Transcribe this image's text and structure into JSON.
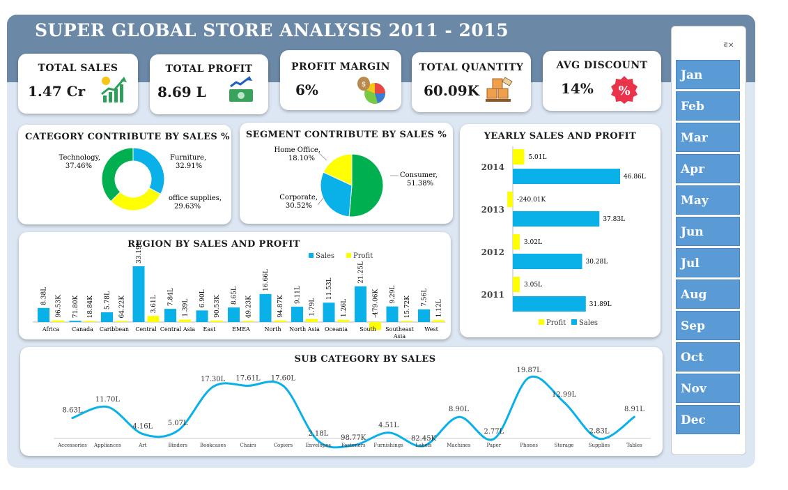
{
  "title": "SUPER GLOBAL STORE ANALYSIS 2011 - 2015",
  "kpis": [
    {
      "title": "TOTAL SALES",
      "value": "1.47 Cr",
      "icon": "sales-growth-icon"
    },
    {
      "title": "TOTAL PROFIT",
      "value": "8.69 L",
      "icon": "money-profit-icon"
    },
    {
      "title": "PROFIT MARGIN",
      "value": "6%",
      "icon": "profit-pie-icon"
    },
    {
      "title": "TOTAL QUANTITY",
      "value": "60.09K",
      "icon": "boxes-quantity-icon"
    },
    {
      "title": "AVG DISCOUNT",
      "value": "14%",
      "icon": "discount-badge-icon"
    }
  ],
  "colors": {
    "sales": "#0ab0e8",
    "profit": "#ffff00",
    "green": "#00b050",
    "band": "#6b89a6",
    "slicer": "#5b9bd5"
  },
  "slicer": {
    "icon": "clear-filter-icon",
    "months": [
      "Jan",
      "Feb",
      "Mar",
      "Apr",
      "May",
      "Jun",
      "Jul",
      "Aug",
      "Sep",
      "Oct",
      "Nov",
      "Dec"
    ]
  },
  "chart_data": [
    {
      "type": "donut",
      "title": "CATEGORY CONTRIBUTE BY SALES %",
      "categories": [
        "Technology",
        "Furniture",
        "office supplies"
      ],
      "values": [
        37.46,
        32.91,
        29.63
      ],
      "labels": [
        "Technology,",
        "Furniture,",
        "office supplies,"
      ],
      "value_labels": [
        "37.46%",
        "32.91%",
        "29.63%"
      ],
      "colors": [
        "#00b050",
        "#0ab0e8",
        "#ffff00"
      ]
    },
    {
      "type": "pie",
      "title": "SEGMENT CONTRIBUTE BY SALES %",
      "categories": [
        "Consumer",
        "Corporate",
        "Home Office"
      ],
      "values": [
        51.38,
        30.52,
        18.1
      ],
      "labels": [
        "Consumer,",
        "Corporate,",
        "Home Office,"
      ],
      "value_labels": [
        "51.38%",
        "30.52%",
        "18.10%"
      ],
      "colors": [
        "#00b050",
        "#0ab0e8",
        "#ffff00"
      ]
    },
    {
      "type": "bar",
      "orientation": "horizontal",
      "title": "YEARLY SALES AND PROFIT",
      "categories": [
        "2014",
        "2013",
        "2012",
        "2011"
      ],
      "series": [
        {
          "name": "Profit",
          "values": [
            5.01,
            -2.4001,
            3.02,
            3.05
          ],
          "labels": [
            "5.01L",
            "-240.01K",
            "3.02L",
            "3.05L"
          ]
        },
        {
          "name": "Sales",
          "values": [
            46.86,
            37.83,
            30.28,
            31.89
          ],
          "labels": [
            "46.86L",
            "37.83L",
            "30.28L",
            "31.89L"
          ]
        }
      ],
      "legend": [
        "Profit",
        "Sales"
      ],
      "legend_position": "bottom",
      "xlim": [
        -3,
        50
      ],
      "unit": "L"
    },
    {
      "type": "bar",
      "title": "REGION BY SALES AND PROFIT",
      "categories": [
        "Africa",
        "Canada",
        "Caribbean",
        "Central",
        "Central Asia",
        "East",
        "EMEA",
        "North",
        "North Asia",
        "Oceania",
        "South",
        "Southeast Asia",
        "West"
      ],
      "series": [
        {
          "name": "Sales",
          "values": [
            8.38,
            0.718,
            5.78,
            33.19,
            7.84,
            6.9,
            8.65,
            16.66,
            9.11,
            11.53,
            21.25,
            9.29,
            7.56
          ],
          "labels": [
            "8.38L",
            "71.80K",
            "5.78L",
            "33.19L",
            "7.84L",
            "6.90L",
            "8.65L",
            "16.66L",
            "9.11L",
            "11.53L",
            "21.25L",
            "9.29L",
            "7.56L"
          ]
        },
        {
          "name": "Profit",
          "values": [
            0.9653,
            0.1884,
            0.6422,
            3.61,
            1.39,
            0.9053,
            0.4923,
            0.9487,
            1.79,
            1.26,
            -4.7906,
            0.1572,
            1.12
          ],
          "labels": [
            "96.53K",
            "18.84K",
            "64.22K",
            "3.61L",
            "1.39L",
            "90.53K",
            "49.23K",
            "94.87K",
            "1.79L",
            "1.26L",
            "-479.06K",
            "15.72K",
            "1.12L"
          ]
        }
      ],
      "legend": [
        "Sales",
        "Profit"
      ],
      "legend_position": "top-right",
      "ylim": [
        -5,
        34
      ],
      "unit": "L"
    },
    {
      "type": "line",
      "smooth": true,
      "title": "SUB CATEGORY BY SALES",
      "categories": [
        "Accessories",
        "Appliances",
        "Art",
        "Binders",
        "Bookcases",
        "Chairs",
        "Copiers",
        "Envelopes",
        "Fasteners",
        "Furnishings",
        "Labels",
        "Machines",
        "Paper",
        "Phones",
        "Storage",
        "Supplies",
        "Tables"
      ],
      "values": [
        8.63,
        11.7,
        4.16,
        5.07,
        17.3,
        17.61,
        17.6,
        2.18,
        0.9877,
        4.51,
        0.8245,
        8.9,
        2.77,
        19.87,
        12.99,
        2.83,
        8.91
      ],
      "labels": [
        "8.63L",
        "11.70L",
        "4.16L",
        "5.07L",
        "17.30L",
        "17.61L",
        "17.60L",
        "2.18L",
        "98.77K",
        "4.51L",
        "82.45K",
        "8.90L",
        "2.77L",
        "19.87L",
        "12.99L",
        "2.83L",
        "8.91L"
      ],
      "color": "#0ab0e8",
      "ylim": [
        0,
        21
      ],
      "unit": "L"
    }
  ]
}
